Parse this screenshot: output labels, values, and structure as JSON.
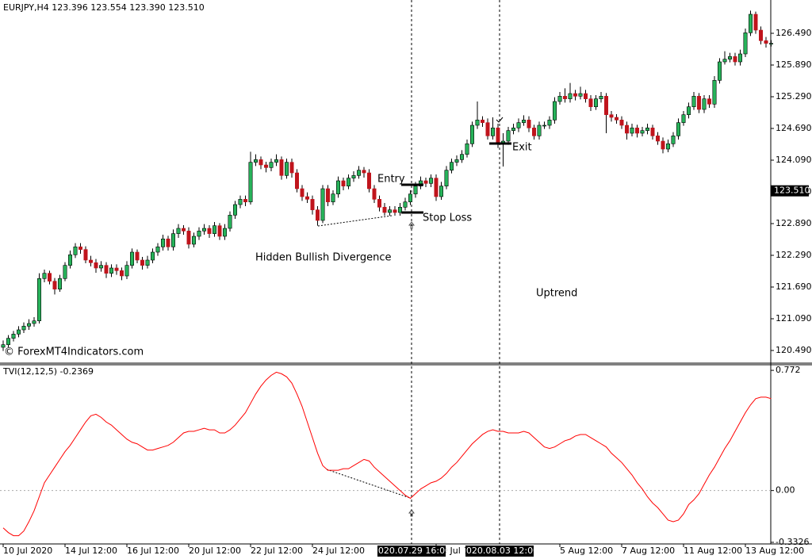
{
  "chart_data": [
    {
      "type": "candlestick",
      "title": "EURJPY,H4  123.396 123.554 123.390 123.510",
      "up_color": "#27b35a",
      "down_color": "#c0141c",
      "watermark": "© ForexMT4Indicators.com",
      "annotations": [
        "Entry",
        "Stop Loss",
        "Exit",
        "Hidden Bullish Divergence",
        "Uptrend"
      ],
      "current_price": {
        "value": 123.51,
        "label": "123.510"
      },
      "ylim": [
        120.25,
        127.12
      ],
      "yticks": [
        {
          "value": 120.49,
          "label": "120.490"
        },
        {
          "value": 121.09,
          "label": "121.090"
        },
        {
          "value": 121.69,
          "label": "121.690"
        },
        {
          "value": 122.29,
          "label": "122.290"
        },
        {
          "value": 122.89,
          "label": "122.890"
        },
        {
          "value": 123.49,
          "label": "123.490"
        },
        {
          "value": 124.09,
          "label": "124.090"
        },
        {
          "value": 124.69,
          "label": "124.690"
        },
        {
          "value": 125.29,
          "label": "125.290"
        },
        {
          "value": 125.89,
          "label": "125.890"
        },
        {
          "value": 126.49,
          "label": "126.490"
        }
      ],
      "ohlc": [
        [
          120.55,
          120.68,
          120.48,
          120.6
        ],
        [
          120.6,
          120.78,
          120.55,
          120.72
        ],
        [
          120.72,
          120.86,
          120.66,
          120.8
        ],
        [
          120.8,
          120.95,
          120.74,
          120.88
        ],
        [
          120.88,
          121.02,
          120.82,
          120.95
        ],
        [
          120.95,
          121.08,
          120.88,
          121.0
        ],
        [
          121.0,
          121.12,
          120.94,
          121.05
        ],
        [
          121.05,
          121.95,
          121.0,
          121.85
        ],
        [
          121.85,
          122.02,
          121.78,
          121.95
        ],
        [
          121.95,
          122.0,
          121.74,
          121.8
        ],
        [
          121.8,
          121.86,
          121.55,
          121.65
        ],
        [
          121.65,
          121.92,
          121.6,
          121.85
        ],
        [
          121.85,
          122.16,
          121.8,
          122.1
        ],
        [
          122.1,
          122.38,
          122.04,
          122.3
        ],
        [
          122.3,
          122.52,
          122.24,
          122.45
        ],
        [
          122.45,
          122.52,
          122.32,
          122.4
        ],
        [
          122.4,
          122.46,
          122.14,
          122.2
        ],
        [
          122.2,
          122.28,
          122.08,
          122.15
        ],
        [
          122.15,
          122.22,
          121.96,
          122.05
        ],
        [
          122.05,
          122.18,
          121.98,
          122.1
        ],
        [
          122.1,
          122.16,
          121.86,
          121.95
        ],
        [
          121.95,
          122.12,
          121.88,
          122.05
        ],
        [
          122.05,
          122.12,
          121.92,
          122.0
        ],
        [
          122.0,
          122.06,
          121.82,
          121.9
        ],
        [
          121.9,
          122.18,
          121.84,
          122.1
        ],
        [
          122.1,
          122.42,
          122.04,
          122.35
        ],
        [
          122.35,
          122.4,
          122.14,
          122.2
        ],
        [
          122.2,
          122.26,
          122.02,
          122.1
        ],
        [
          122.1,
          122.28,
          122.04,
          122.2
        ],
        [
          122.2,
          122.42,
          122.14,
          122.35
        ],
        [
          122.35,
          122.52,
          122.28,
          122.45
        ],
        [
          122.45,
          122.68,
          122.38,
          122.6
        ],
        [
          122.6,
          122.66,
          122.38,
          122.45
        ],
        [
          122.45,
          122.78,
          122.38,
          122.7
        ],
        [
          122.7,
          122.88,
          122.62,
          122.8
        ],
        [
          122.8,
          122.86,
          122.68,
          122.75
        ],
        [
          122.75,
          122.82,
          122.42,
          122.5
        ],
        [
          122.5,
          122.72,
          122.44,
          122.65
        ],
        [
          122.65,
          122.82,
          122.58,
          122.75
        ],
        [
          122.75,
          122.88,
          122.68,
          122.8
        ],
        [
          122.8,
          122.86,
          122.62,
          122.7
        ],
        [
          122.7,
          122.92,
          122.64,
          122.85
        ],
        [
          122.85,
          122.9,
          122.58,
          122.65
        ],
        [
          122.65,
          122.88,
          122.58,
          122.8
        ],
        [
          122.8,
          123.12,
          122.74,
          123.05
        ],
        [
          123.05,
          123.32,
          122.98,
          123.25
        ],
        [
          123.25,
          123.42,
          123.18,
          123.35
        ],
        [
          123.35,
          123.42,
          123.22,
          123.3
        ],
        [
          123.3,
          124.25,
          123.25,
          124.05
        ],
        [
          124.05,
          124.2,
          123.98,
          124.1
        ],
        [
          124.1,
          124.16,
          123.92,
          124.0
        ],
        [
          124.0,
          124.06,
          123.86,
          123.95
        ],
        [
          123.95,
          124.12,
          123.88,
          124.05
        ],
        [
          124.05,
          124.2,
          123.98,
          124.1
        ],
        [
          124.1,
          124.16,
          123.72,
          123.8
        ],
        [
          123.8,
          124.12,
          123.74,
          124.05
        ],
        [
          124.05,
          124.12,
          123.76,
          123.85
        ],
        [
          123.85,
          123.92,
          123.48,
          123.55
        ],
        [
          123.55,
          123.62,
          123.32,
          123.4
        ],
        [
          123.4,
          123.48,
          123.28,
          123.35
        ],
        [
          123.35,
          123.42,
          123.06,
          123.15
        ],
        [
          123.15,
          123.22,
          122.85,
          122.95
        ],
        [
          122.95,
          123.62,
          122.9,
          123.55
        ],
        [
          123.55,
          123.62,
          123.22,
          123.3
        ],
        [
          123.3,
          123.52,
          123.24,
          123.45
        ],
        [
          123.45,
          123.78,
          123.38,
          123.7
        ],
        [
          123.7,
          123.76,
          123.52,
          123.6
        ],
        [
          123.6,
          123.82,
          123.54,
          123.75
        ],
        [
          123.75,
          123.88,
          123.68,
          123.8
        ],
        [
          123.8,
          123.98,
          123.74,
          123.9
        ],
        [
          123.9,
          123.96,
          123.76,
          123.85
        ],
        [
          123.85,
          123.92,
          123.48,
          123.55
        ],
        [
          123.55,
          123.62,
          123.28,
          123.35
        ],
        [
          123.35,
          123.42,
          123.12,
          123.2
        ],
        [
          123.2,
          123.28,
          123.04,
          123.1
        ],
        [
          123.1,
          123.22,
          123.04,
          123.15
        ],
        [
          123.15,
          123.22,
          123.04,
          123.1
        ],
        [
          123.1,
          123.28,
          123.04,
          123.2
        ],
        [
          123.2,
          123.38,
          123.14,
          123.3
        ],
        [
          123.3,
          123.52,
          123.24,
          123.45
        ],
        [
          123.45,
          123.68,
          123.38,
          123.6
        ],
        [
          123.6,
          123.78,
          123.54,
          123.7
        ],
        [
          123.7,
          123.76,
          123.58,
          123.65
        ],
        [
          123.65,
          123.82,
          123.58,
          123.75
        ],
        [
          123.75,
          123.82,
          123.32,
          123.4
        ],
        [
          123.4,
          123.68,
          123.34,
          123.6
        ],
        [
          123.6,
          123.98,
          123.54,
          123.9
        ],
        [
          123.9,
          124.12,
          123.84,
          124.05
        ],
        [
          124.05,
          124.18,
          123.98,
          124.1
        ],
        [
          124.1,
          124.28,
          124.04,
          124.2
        ],
        [
          124.2,
          124.48,
          124.14,
          124.4
        ],
        [
          124.4,
          124.82,
          124.34,
          124.75
        ],
        [
          124.75,
          125.2,
          124.68,
          124.85
        ],
        [
          124.85,
          124.92,
          124.72,
          124.8
        ],
        [
          124.8,
          124.88,
          124.48,
          124.55
        ],
        [
          124.55,
          124.9,
          124.48,
          124.7
        ],
        [
          124.7,
          124.78,
          124.32,
          124.4
        ],
        [
          124.4,
          124.6,
          123.97,
          124.45
        ],
        [
          124.45,
          124.72,
          124.38,
          124.65
        ],
        [
          124.65,
          124.78,
          124.58,
          124.7
        ],
        [
          124.7,
          124.88,
          124.62,
          124.8
        ],
        [
          124.8,
          124.94,
          124.74,
          124.85
        ],
        [
          124.85,
          124.92,
          124.62,
          124.7
        ],
        [
          124.7,
          124.76,
          124.48,
          124.55
        ],
        [
          124.55,
          124.82,
          124.48,
          124.75
        ],
        [
          124.75,
          124.82,
          124.68,
          124.75
        ],
        [
          124.75,
          124.92,
          124.68,
          124.85
        ],
        [
          124.85,
          125.28,
          124.78,
          125.2
        ],
        [
          125.2,
          125.38,
          125.14,
          125.3
        ],
        [
          125.3,
          125.45,
          125.18,
          125.25
        ],
        [
          125.25,
          125.55,
          125.18,
          125.35
        ],
        [
          125.35,
          125.42,
          125.22,
          125.3
        ],
        [
          125.3,
          125.48,
          125.24,
          125.35
        ],
        [
          125.35,
          125.42,
          125.18,
          125.25
        ],
        [
          125.25,
          125.32,
          125.02,
          125.1
        ],
        [
          125.1,
          125.32,
          125.04,
          125.25
        ],
        [
          125.25,
          125.38,
          125.18,
          125.3
        ],
        [
          125.3,
          125.36,
          124.6,
          124.95
        ],
        [
          124.95,
          125.02,
          124.82,
          124.9
        ],
        [
          124.9,
          124.96,
          124.78,
          124.85
        ],
        [
          124.85,
          124.92,
          124.68,
          124.75
        ],
        [
          124.75,
          124.82,
          124.48,
          124.6
        ],
        [
          124.6,
          124.78,
          124.54,
          124.7
        ],
        [
          124.7,
          124.76,
          124.52,
          124.6
        ],
        [
          124.6,
          124.72,
          124.54,
          124.65
        ],
        [
          124.65,
          124.78,
          124.58,
          124.7
        ],
        [
          124.7,
          124.76,
          124.48,
          124.55
        ],
        [
          124.55,
          124.62,
          124.38,
          124.45
        ],
        [
          124.45,
          124.52,
          124.22,
          124.3
        ],
        [
          124.3,
          124.48,
          124.24,
          124.4
        ],
        [
          124.4,
          124.62,
          124.34,
          124.55
        ],
        [
          124.55,
          124.88,
          124.48,
          124.8
        ],
        [
          124.8,
          125.02,
          124.74,
          124.95
        ],
        [
          124.95,
          125.18,
          124.88,
          125.1
        ],
        [
          125.1,
          125.38,
          125.04,
          125.3
        ],
        [
          125.3,
          125.36,
          124.98,
          125.05
        ],
        [
          125.05,
          125.32,
          124.98,
          125.25
        ],
        [
          125.25,
          125.32,
          125.08,
          125.15
        ],
        [
          125.15,
          125.68,
          125.08,
          125.6
        ],
        [
          125.6,
          126.02,
          125.54,
          125.95
        ],
        [
          125.95,
          126.15,
          125.9,
          126.0
        ],
        [
          126.0,
          126.12,
          125.94,
          126.05
        ],
        [
          126.05,
          126.12,
          125.88,
          125.95
        ],
        [
          125.95,
          126.18,
          125.88,
          126.1
        ],
        [
          126.1,
          126.58,
          126.04,
          126.5
        ],
        [
          126.5,
          126.92,
          126.44,
          126.85
        ],
        [
          126.85,
          126.9,
          126.48,
          126.55
        ],
        [
          126.55,
          126.62,
          126.28,
          126.35
        ],
        [
          126.35,
          126.42,
          126.22,
          126.3
        ],
        [
          126.3,
          126.36,
          126.24,
          126.3
        ]
      ]
    },
    {
      "type": "line",
      "title": "TVI(12,12,5) -0.2369",
      "color": "#ff0000",
      "level": 0,
      "crosshair_labels": [
        "2020.07.29 16:00",
        "2020.08.03 12:00"
      ],
      "ylim": [
        -0.343,
        0.808
      ],
      "yticks": [
        -0.3326,
        {
          "value": 0,
          "label": "0.00"
        },
        0.772
      ],
      "categories": [
        "10 Jul 2020",
        null,
        null,
        null,
        null,
        null,
        null,
        null,
        null,
        null,
        null,
        null,
        "14 Jul 12:00",
        null,
        null,
        null,
        null,
        null,
        null,
        null,
        null,
        null,
        null,
        null,
        "16 Jul 12:00",
        null,
        null,
        null,
        null,
        null,
        null,
        null,
        null,
        null,
        null,
        null,
        "20 Jul 12:00",
        null,
        null,
        null,
        null,
        null,
        null,
        null,
        null,
        null,
        null,
        null,
        "22 Jul 12:00",
        null,
        null,
        null,
        null,
        null,
        null,
        null,
        null,
        null,
        null,
        null,
        "24 Jul 12:00",
        null,
        null,
        null,
        null,
        null,
        null,
        null,
        null,
        null,
        null,
        null,
        null,
        null,
        null,
        null,
        null,
        null,
        null,
        null,
        null,
        null,
        null,
        null,
        "30 Jul 12:00",
        null,
        null,
        null,
        null,
        null,
        null,
        null,
        null,
        null,
        null,
        null,
        null,
        null,
        null,
        null,
        null,
        null,
        null,
        null,
        null,
        null,
        null,
        null,
        "5 Aug 12:00",
        null,
        null,
        null,
        null,
        null,
        null,
        null,
        null,
        null,
        null,
        null,
        "7 Aug 12:00",
        null,
        null,
        null,
        null,
        null,
        null,
        null,
        null,
        null,
        null,
        null,
        "11 Aug 12:00",
        null,
        null,
        null,
        null,
        null,
        null,
        null,
        null,
        null,
        null,
        null,
        "13 Aug 12:00",
        null,
        null,
        null,
        null,
        null
      ],
      "values": [
        -0.24,
        -0.27,
        -0.29,
        -0.29,
        -0.26,
        -0.2,
        -0.13,
        -0.04,
        0.05,
        0.1,
        0.15,
        0.2,
        0.25,
        0.29,
        0.34,
        0.39,
        0.44,
        0.48,
        0.49,
        0.47,
        0.44,
        0.42,
        0.39,
        0.36,
        0.33,
        0.31,
        0.3,
        0.28,
        0.26,
        0.26,
        0.27,
        0.28,
        0.29,
        0.31,
        0.34,
        0.37,
        0.38,
        0.38,
        0.39,
        0.4,
        0.39,
        0.39,
        0.37,
        0.37,
        0.39,
        0.42,
        0.46,
        0.5,
        0.56,
        0.62,
        0.67,
        0.71,
        0.74,
        0.76,
        0.75,
        0.73,
        0.69,
        0.62,
        0.54,
        0.44,
        0.34,
        0.24,
        0.16,
        0.13,
        0.13,
        0.13,
        0.14,
        0.14,
        0.16,
        0.18,
        0.2,
        0.19,
        0.15,
        0.12,
        0.09,
        0.06,
        0.03,
        0.0,
        -0.03,
        -0.05,
        -0.02,
        0.01,
        0.03,
        0.05,
        0.06,
        0.08,
        0.11,
        0.15,
        0.18,
        0.22,
        0.26,
        0.3,
        0.33,
        0.36,
        0.38,
        0.39,
        0.38,
        0.38,
        0.37,
        0.37,
        0.37,
        0.38,
        0.37,
        0.34,
        0.31,
        0.28,
        0.27,
        0.28,
        0.3,
        0.32,
        0.33,
        0.35,
        0.36,
        0.36,
        0.34,
        0.32,
        0.3,
        0.28,
        0.24,
        0.21,
        0.18,
        0.14,
        0.1,
        0.05,
        0.01,
        -0.04,
        -0.08,
        -0.11,
        -0.15,
        -0.19,
        -0.2,
        -0.19,
        -0.15,
        -0.09,
        -0.06,
        -0.02,
        0.04,
        0.1,
        0.15,
        0.21,
        0.27,
        0.32,
        0.38,
        0.44,
        0.5,
        0.55,
        0.59,
        0.6,
        0.6,
        0.59
      ]
    }
  ]
}
